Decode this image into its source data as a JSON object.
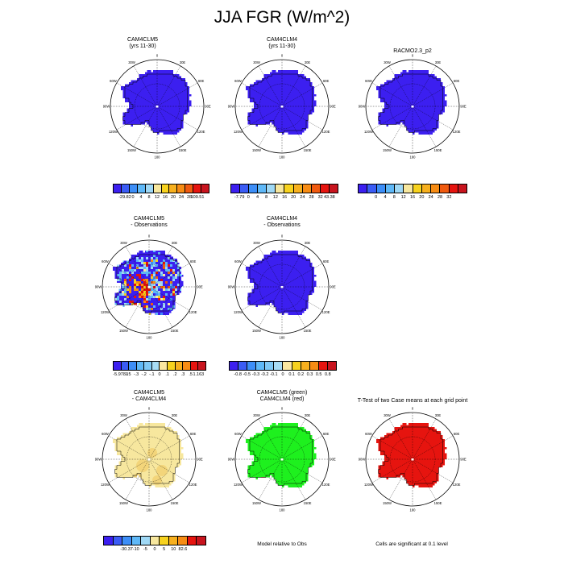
{
  "title": "JJA FGR (W/m^2)",
  "colors": {
    "blue": "#3c1ff0",
    "green": "#1ef01e",
    "red": "#e6140f",
    "tan": "#f7e79e",
    "tan_dark": "#f3d57a",
    "orange": "#f78c14",
    "yellow": "#f7d21e"
  },
  "panels": [
    {
      "id": "p1",
      "title": [
        "CAM4CLM5",
        "(yrs 11-30)"
      ],
      "fill": "blue",
      "pattern": "plain"
    },
    {
      "id": "p2",
      "title": [
        "CAM4CLM4",
        "(yrs 11-30)"
      ],
      "fill": "blue",
      "pattern": "plain"
    },
    {
      "id": "p3",
      "title": [
        "RACMO2.3_p2"
      ],
      "fill": "blue",
      "pattern": "plain"
    },
    {
      "id": "p4",
      "title": [
        "CAM4CLM5",
        "- Observations"
      ],
      "fill": "blue",
      "pattern": "diff1"
    },
    {
      "id": "p5",
      "title": [
        "CAM4CLM4",
        "- Observations"
      ],
      "fill": "blue",
      "pattern": "plain"
    },
    {
      "id": "p6",
      "title": [
        "CAM4CLM5",
        "- CAM4CLM4"
      ],
      "fill": "tan",
      "pattern": "tan"
    },
    {
      "id": "p7",
      "title": [
        "CAM4CLM5 (green)",
        "CAM4CLM4 (red)"
      ],
      "fill": "green",
      "pattern": "green"
    },
    {
      "id": "p8",
      "title": [
        "T-Test of two Case means at each grid point"
      ],
      "fill": "red",
      "pattern": "plain"
    }
  ],
  "lon_labels": [
    "0",
    "30E",
    "60E",
    "90E",
    "120E",
    "150E",
    "180",
    "150W",
    "120W",
    "90W",
    "60W",
    "30W"
  ],
  "colorbars": [
    {
      "id": "cb1",
      "colors": [
        "#3c1ff0",
        "#3b5cf5",
        "#3d8ef7",
        "#5fb8f7",
        "#9fd8f5",
        "#f7e79e",
        "#f7d21e",
        "#f7b01e",
        "#f78c14",
        "#f05a0f",
        "#e6140f",
        "#c8141e"
      ],
      "labels": [
        "-29.82",
        "0",
        "4",
        "8",
        "12",
        "16",
        "20",
        "24",
        "28",
        "109.51"
      ]
    },
    {
      "id": "cb2",
      "colors": [
        "#3c1ff0",
        "#3b5cf5",
        "#3d8ef7",
        "#5fb8f7",
        "#9fd8f5",
        "#f7e79e",
        "#f7d21e",
        "#f7b01e",
        "#f78c14",
        "#f05a0f",
        "#e6140f",
        "#c8141e"
      ],
      "labels": [
        "-7.79",
        "0",
        "4",
        "8",
        "12",
        "16",
        "20",
        "24",
        "28",
        "32",
        "43.38"
      ]
    },
    {
      "id": "cb3",
      "colors": [
        "#3c1ff0",
        "#3b5cf5",
        "#3d8ef7",
        "#5fb8f7",
        "#9fd8f5",
        "#f7e79e",
        "#f7d21e",
        "#f7b01e",
        "#f78c14",
        "#f05a0f",
        "#e6140f",
        "#c8141e"
      ],
      "labels": [
        "0",
        "4",
        "8",
        "12",
        "16",
        "20",
        "24",
        "28",
        "32"
      ]
    },
    {
      "id": "cb4",
      "colors": [
        "#3c1ff0",
        "#3b5cf5",
        "#3d8ef7",
        "#5fb8f7",
        "#7fc8f5",
        "#a8dcf5",
        "#fbe7a0",
        "#f7d21e",
        "#f7b01e",
        "#f78c14",
        "#e6140f",
        "#c8141e"
      ],
      "labels": [
        "-5.9783",
        "-.5",
        "-.3",
        "-.2",
        "-.1",
        "0",
        ".1",
        ".2",
        ".3",
        ".5",
        "1.163"
      ]
    },
    {
      "id": "cb5",
      "colors": [
        "#3c1ff0",
        "#3b5cf5",
        "#3d8ef7",
        "#5fb8f7",
        "#7fc8f5",
        "#a8dcf5",
        "#fbe7a0",
        "#f7d21e",
        "#f7b01e",
        "#f78c14",
        "#e6140f",
        "#c8141e"
      ],
      "labels": [
        "-0.8",
        "-0.5",
        "-0.3",
        "-0.2",
        "-0.1",
        "0",
        "0.1",
        "0.2",
        "0.3",
        "0.5",
        "0.8"
      ]
    },
    {
      "id": "cb6",
      "colors": [
        "#3c1ff0",
        "#3b5cf5",
        "#3d8ef7",
        "#5fb8f7",
        "#9fd8f5",
        "#f7e79e",
        "#f7d21e",
        "#f7b01e",
        "#f78c14",
        "#e6140f",
        "#c8141e"
      ],
      "labels": [
        "-30.37",
        "-10",
        "-5",
        "0",
        "5",
        "10",
        "82.6"
      ]
    }
  ],
  "notes": {
    "model_relative": "Model relative to Obs",
    "significance": "Cells are significant at 0.1 level"
  },
  "chart_data": {
    "type": "heatmap",
    "title": "JJA FGR (W/m^2)",
    "projection": "south polar stereographic (Antarctica)",
    "panels": [
      {
        "title": "CAM4CLM5 (yrs 11-30)",
        "range": [
          -29.82,
          109.51
        ],
        "levels": [
          0,
          4,
          8,
          12,
          16,
          20,
          24,
          28
        ]
      },
      {
        "title": "CAM4CLM4 (yrs 11-30)",
        "range": [
          -7.79,
          43.38
        ],
        "levels": [
          0,
          4,
          8,
          12,
          16,
          20,
          24,
          28,
          32
        ]
      },
      {
        "title": "RACMO2.3_p2",
        "levels": [
          0,
          4,
          8,
          12,
          16,
          20,
          24,
          28,
          32
        ]
      },
      {
        "title": "CAM4CLM5 - Observations",
        "range": [
          -5.9783,
          1.163
        ],
        "levels": [
          -0.5,
          -0.3,
          -0.2,
          -0.1,
          0,
          0.1,
          0.2,
          0.3,
          0.5
        ]
      },
      {
        "title": "CAM4CLM4 - Observations",
        "levels": [
          -0.8,
          -0.5,
          -0.3,
          -0.2,
          -0.1,
          0,
          0.1,
          0.2,
          0.3,
          0.5,
          0.8
        ]
      },
      {
        "title": "CAM4CLM5 - CAM4CLM4",
        "range": [
          -30.37,
          82.6
        ],
        "levels": [
          -10,
          -5,
          0,
          5,
          10
        ]
      },
      {
        "title": "CAM4CLM5 (green) CAM4CLM4 (red)",
        "note": "Model relative to Obs"
      },
      {
        "title": "T-Test of two Case means at each grid point",
        "note": "Cells are significant at 0.1 level"
      }
    ]
  }
}
